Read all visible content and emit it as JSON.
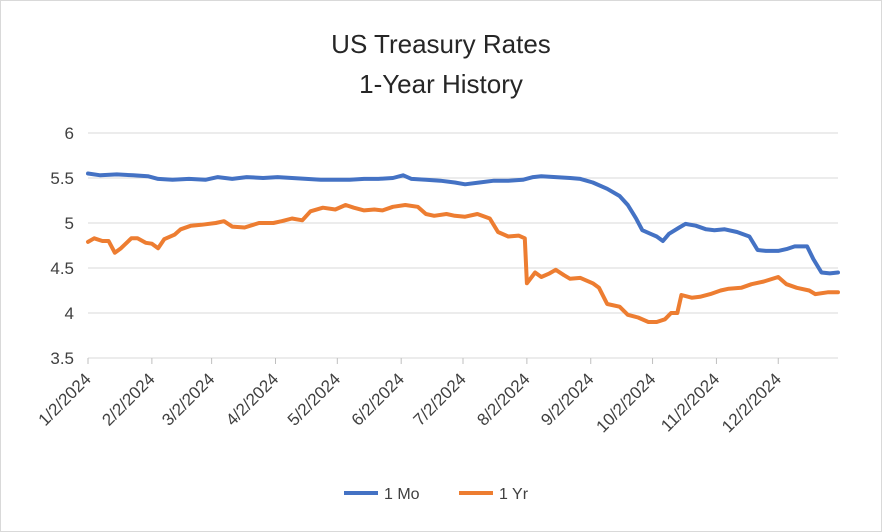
{
  "chart_data": {
    "type": "line",
    "title_lines": [
      "US Treasury Rates",
      "1-Year History"
    ],
    "xlabel": "",
    "ylabel": "",
    "ylim": [
      3.5,
      6
    ],
    "yticks": [
      "6",
      "5.5",
      "5",
      "4.5",
      "4",
      "3.5"
    ],
    "ytick_values": [
      6,
      5.5,
      5,
      4.5,
      4,
      3.5
    ],
    "x_range": [
      "2024-01-02",
      "2024-12-31"
    ],
    "x_tick_dates": [
      "2024-01-02",
      "2024-02-02",
      "2024-03-02",
      "2024-04-02",
      "2024-05-02",
      "2024-06-02",
      "2024-07-02",
      "2024-08-02",
      "2024-09-02",
      "2024-10-02",
      "2024-11-02",
      "2024-12-02"
    ],
    "x_tick_labels": [
      "1/2/2024",
      "2/2/2024",
      "3/2/2024",
      "4/2/2024",
      "5/2/2024",
      "6/2/2024",
      "7/2/2024",
      "8/2/2024",
      "9/2/2024",
      "10/2/2024",
      "11/2/2024",
      "12/2/2024"
    ],
    "grid": "horizontal",
    "legend": "bottom",
    "series": [
      {
        "name": "1 Mo",
        "color": "#4472C4",
        "points": [
          [
            "2024-01-02",
            5.55
          ],
          [
            "2024-01-08",
            5.53
          ],
          [
            "2024-01-16",
            5.54
          ],
          [
            "2024-01-24",
            5.53
          ],
          [
            "2024-01-31",
            5.52
          ],
          [
            "2024-02-05",
            5.49
          ],
          [
            "2024-02-12",
            5.48
          ],
          [
            "2024-02-20",
            5.49
          ],
          [
            "2024-02-28",
            5.48
          ],
          [
            "2024-03-05",
            5.51
          ],
          [
            "2024-03-12",
            5.49
          ],
          [
            "2024-03-19",
            5.51
          ],
          [
            "2024-03-27",
            5.5
          ],
          [
            "2024-04-03",
            5.51
          ],
          [
            "2024-04-10",
            5.5
          ],
          [
            "2024-04-17",
            5.49
          ],
          [
            "2024-04-24",
            5.48
          ],
          [
            "2024-05-01",
            5.48
          ],
          [
            "2024-05-08",
            5.48
          ],
          [
            "2024-05-15",
            5.49
          ],
          [
            "2024-05-22",
            5.49
          ],
          [
            "2024-05-29",
            5.5
          ],
          [
            "2024-06-03",
            5.53
          ],
          [
            "2024-06-07",
            5.49
          ],
          [
            "2024-06-14",
            5.48
          ],
          [
            "2024-06-21",
            5.47
          ],
          [
            "2024-06-28",
            5.45
          ],
          [
            "2024-07-03",
            5.43
          ],
          [
            "2024-07-10",
            5.45
          ],
          [
            "2024-07-17",
            5.47
          ],
          [
            "2024-07-24",
            5.47
          ],
          [
            "2024-07-31",
            5.48
          ],
          [
            "2024-08-05",
            5.51
          ],
          [
            "2024-08-09",
            5.52
          ],
          [
            "2024-08-16",
            5.51
          ],
          [
            "2024-08-23",
            5.5
          ],
          [
            "2024-08-28",
            5.49
          ],
          [
            "2024-09-03",
            5.45
          ],
          [
            "2024-09-10",
            5.38
          ],
          [
            "2024-09-16",
            5.3
          ],
          [
            "2024-09-20",
            5.2
          ],
          [
            "2024-09-24",
            5.05
          ],
          [
            "2024-09-27",
            4.92
          ],
          [
            "2024-10-01",
            4.88
          ],
          [
            "2024-10-04",
            4.85
          ],
          [
            "2024-10-07",
            4.8
          ],
          [
            "2024-10-10",
            4.88
          ],
          [
            "2024-10-15",
            4.95
          ],
          [
            "2024-10-18",
            4.99
          ],
          [
            "2024-10-23",
            4.97
          ],
          [
            "2024-10-28",
            4.93
          ],
          [
            "2024-11-01",
            4.92
          ],
          [
            "2024-11-06",
            4.93
          ],
          [
            "2024-11-12",
            4.9
          ],
          [
            "2024-11-18",
            4.85
          ],
          [
            "2024-11-22",
            4.7
          ],
          [
            "2024-11-26",
            4.69
          ],
          [
            "2024-12-02",
            4.69
          ],
          [
            "2024-12-06",
            4.71
          ],
          [
            "2024-12-10",
            4.74
          ],
          [
            "2024-12-16",
            4.74
          ],
          [
            "2024-12-19",
            4.6
          ],
          [
            "2024-12-23",
            4.45
          ],
          [
            "2024-12-27",
            4.44
          ],
          [
            "2024-12-31",
            4.45
          ]
        ]
      },
      {
        "name": "1 Yr",
        "color": "#ED7D31",
        "points": [
          [
            "2024-01-02",
            4.79
          ],
          [
            "2024-01-05",
            4.83
          ],
          [
            "2024-01-09",
            4.8
          ],
          [
            "2024-01-12",
            4.8
          ],
          [
            "2024-01-15",
            4.67
          ],
          [
            "2024-01-18",
            4.72
          ],
          [
            "2024-01-23",
            4.83
          ],
          [
            "2024-01-26",
            4.83
          ],
          [
            "2024-01-30",
            4.78
          ],
          [
            "2024-02-02",
            4.77
          ],
          [
            "2024-02-05",
            4.72
          ],
          [
            "2024-02-08",
            4.82
          ],
          [
            "2024-02-13",
            4.87
          ],
          [
            "2024-02-16",
            4.93
          ],
          [
            "2024-02-21",
            4.97
          ],
          [
            "2024-02-26",
            4.98
          ],
          [
            "2024-03-04",
            5.0
          ],
          [
            "2024-03-08",
            5.02
          ],
          [
            "2024-03-12",
            4.96
          ],
          [
            "2024-03-18",
            4.95
          ],
          [
            "2024-03-25",
            5.0
          ],
          [
            "2024-04-01",
            5.0
          ],
          [
            "2024-04-05",
            5.02
          ],
          [
            "2024-04-10",
            5.05
          ],
          [
            "2024-04-15",
            5.03
          ],
          [
            "2024-04-19",
            5.13
          ],
          [
            "2024-04-25",
            5.17
          ],
          [
            "2024-05-01",
            5.15
          ],
          [
            "2024-05-06",
            5.2
          ],
          [
            "2024-05-10",
            5.17
          ],
          [
            "2024-05-15",
            5.14
          ],
          [
            "2024-05-20",
            5.15
          ],
          [
            "2024-05-24",
            5.14
          ],
          [
            "2024-05-29",
            5.18
          ],
          [
            "2024-06-04",
            5.2
          ],
          [
            "2024-06-10",
            5.18
          ],
          [
            "2024-06-14",
            5.1
          ],
          [
            "2024-06-18",
            5.08
          ],
          [
            "2024-06-24",
            5.1
          ],
          [
            "2024-06-28",
            5.08
          ],
          [
            "2024-07-03",
            5.07
          ],
          [
            "2024-07-09",
            5.1
          ],
          [
            "2024-07-15",
            5.05
          ],
          [
            "2024-07-19",
            4.9
          ],
          [
            "2024-07-24",
            4.85
          ],
          [
            "2024-07-29",
            4.86
          ],
          [
            "2024-08-01",
            4.83
          ],
          [
            "2024-08-02",
            4.33
          ],
          [
            "2024-08-06",
            4.45
          ],
          [
            "2024-08-09",
            4.4
          ],
          [
            "2024-08-13",
            4.44
          ],
          [
            "2024-08-16",
            4.48
          ],
          [
            "2024-08-20",
            4.42
          ],
          [
            "2024-08-23",
            4.38
          ],
          [
            "2024-08-28",
            4.39
          ],
          [
            "2024-09-03",
            4.33
          ],
          [
            "2024-09-06",
            4.28
          ],
          [
            "2024-09-10",
            4.1
          ],
          [
            "2024-09-16",
            4.07
          ],
          [
            "2024-09-20",
            3.98
          ],
          [
            "2024-09-25",
            3.95
          ],
          [
            "2024-09-30",
            3.9
          ],
          [
            "2024-10-04",
            3.9
          ],
          [
            "2024-10-08",
            3.93
          ],
          [
            "2024-10-11",
            4.0
          ],
          [
            "2024-10-14",
            4.0
          ],
          [
            "2024-10-16",
            4.2
          ],
          [
            "2024-10-21",
            4.17
          ],
          [
            "2024-10-25",
            4.18
          ],
          [
            "2024-10-30",
            4.21
          ],
          [
            "2024-11-04",
            4.25
          ],
          [
            "2024-11-08",
            4.27
          ],
          [
            "2024-11-14",
            4.28
          ],
          [
            "2024-11-19",
            4.32
          ],
          [
            "2024-11-25",
            4.35
          ],
          [
            "2024-12-02",
            4.4
          ],
          [
            "2024-12-06",
            4.32
          ],
          [
            "2024-12-11",
            4.28
          ],
          [
            "2024-12-17",
            4.25
          ],
          [
            "2024-12-20",
            4.21
          ],
          [
            "2024-12-26",
            4.23
          ],
          [
            "2024-12-31",
            4.23
          ]
        ]
      }
    ]
  }
}
